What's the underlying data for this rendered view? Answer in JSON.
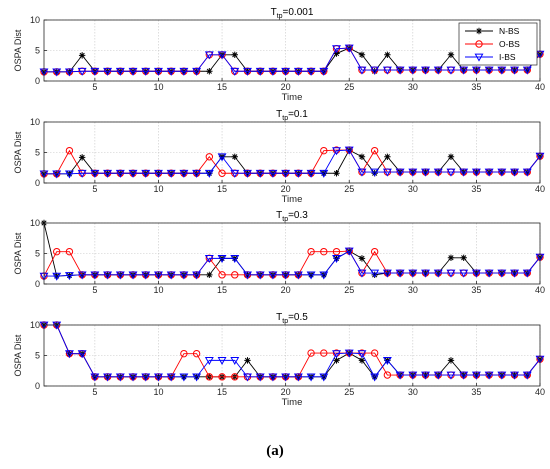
{
  "caption": "(a)",
  "colors": {
    "N-BS": "#000000",
    "O-BS": "#ff0000",
    "I-BS": "#0000ff"
  },
  "chart_data": [
    {
      "type": "line",
      "title": "T_tp=0.001",
      "title_base": "T",
      "title_sub": "tp",
      "title_rest": "=0.001",
      "xlabel": "Time",
      "ylabel": "OSPA Dist",
      "xlim": [
        1,
        40
      ],
      "ylim": [
        0,
        10
      ],
      "xticks": [
        5,
        10,
        15,
        20,
        25,
        30,
        35,
        40
      ],
      "yticks": [
        0,
        5,
        10
      ],
      "grid": true,
      "legend": "top-right",
      "x": [
        1,
        2,
        3,
        4,
        5,
        6,
        7,
        8,
        9,
        10,
        11,
        12,
        13,
        14,
        15,
        16,
        17,
        18,
        19,
        20,
        21,
        22,
        23,
        24,
        25,
        26,
        27,
        28,
        29,
        30,
        31,
        32,
        33,
        34,
        35,
        36,
        37,
        38,
        39,
        40
      ],
      "series": [
        {
          "name": "N-BS",
          "marker": "star",
          "values": [
            1.5,
            1.5,
            1.5,
            4.2,
            1.6,
            1.6,
            1.6,
            1.6,
            1.6,
            1.6,
            1.6,
            1.6,
            1.6,
            1.6,
            4.3,
            4.3,
            1.6,
            1.6,
            1.6,
            1.6,
            1.6,
            1.6,
            1.6,
            4.5,
            5.4,
            4.3,
            1.6,
            4.3,
            1.8,
            1.8,
            1.8,
            1.8,
            4.3,
            1.8,
            1.8,
            1.8,
            1.8,
            1.8,
            1.8,
            4.4
          ]
        },
        {
          "name": "O-BS",
          "marker": "circle",
          "values": [
            1.5,
            1.5,
            1.5,
            1.6,
            1.6,
            1.6,
            1.6,
            1.6,
            1.6,
            1.6,
            1.6,
            1.6,
            1.6,
            4.3,
            4.3,
            1.6,
            1.6,
            1.6,
            1.6,
            1.6,
            1.6,
            1.6,
            1.6,
            5.3,
            5.4,
            1.8,
            1.8,
            1.8,
            1.8,
            1.8,
            1.8,
            1.8,
            1.8,
            1.8,
            1.8,
            1.8,
            1.8,
            1.8,
            1.8,
            4.4
          ]
        },
        {
          "name": "I-BS",
          "marker": "triangle-down",
          "values": [
            1.5,
            1.5,
            1.5,
            1.6,
            1.6,
            1.6,
            1.6,
            1.6,
            1.6,
            1.6,
            1.6,
            1.6,
            1.6,
            4.3,
            4.3,
            1.6,
            1.6,
            1.6,
            1.6,
            1.6,
            1.6,
            1.6,
            1.6,
            5.3,
            5.4,
            1.8,
            1.8,
            1.8,
            1.8,
            1.8,
            1.8,
            1.8,
            1.8,
            1.8,
            1.8,
            1.8,
            1.8,
            1.8,
            1.8,
            4.4
          ]
        }
      ]
    },
    {
      "type": "line",
      "title": "T_tp=0.1",
      "title_base": "T",
      "title_sub": "tp",
      "title_rest": "=0.1",
      "xlabel": "Time",
      "ylabel": "OSPA Dist",
      "xlim": [
        1,
        40
      ],
      "ylim": [
        0,
        10
      ],
      "xticks": [
        5,
        10,
        15,
        20,
        25,
        30,
        35,
        40
      ],
      "yticks": [
        0,
        5,
        10
      ],
      "grid": true,
      "x": [
        1,
        2,
        3,
        4,
        5,
        6,
        7,
        8,
        9,
        10,
        11,
        12,
        13,
        14,
        15,
        16,
        17,
        18,
        19,
        20,
        21,
        22,
        23,
        24,
        25,
        26,
        27,
        28,
        29,
        30,
        31,
        32,
        33,
        34,
        35,
        36,
        37,
        38,
        39,
        40
      ],
      "series": [
        {
          "name": "N-BS",
          "marker": "star",
          "values": [
            1.5,
            1.5,
            1.5,
            4.2,
            1.6,
            1.6,
            1.6,
            1.6,
            1.6,
            1.6,
            1.6,
            1.6,
            1.6,
            1.6,
            4.3,
            4.3,
            1.6,
            1.6,
            1.6,
            1.6,
            1.6,
            1.6,
            1.6,
            1.6,
            5.4,
            4.3,
            1.6,
            4.3,
            1.8,
            1.8,
            1.8,
            1.8,
            4.3,
            1.8,
            1.8,
            1.8,
            1.8,
            1.8,
            1.8,
            4.4
          ]
        },
        {
          "name": "O-BS",
          "marker": "circle",
          "values": [
            1.5,
            1.5,
            5.3,
            1.6,
            1.6,
            1.6,
            1.6,
            1.6,
            1.6,
            1.6,
            1.6,
            1.6,
            1.6,
            4.3,
            1.6,
            1.6,
            1.6,
            1.6,
            1.6,
            1.6,
            1.6,
            1.6,
            5.3,
            5.4,
            5.4,
            1.8,
            5.3,
            1.8,
            1.8,
            1.8,
            1.8,
            1.8,
            1.8,
            1.8,
            1.8,
            1.8,
            1.8,
            1.8,
            1.8,
            4.4
          ]
        },
        {
          "name": "I-BS",
          "marker": "triangle-down",
          "values": [
            1.5,
            1.5,
            1.5,
            1.6,
            1.6,
            1.6,
            1.6,
            1.6,
            1.6,
            1.6,
            1.6,
            1.6,
            1.6,
            1.6,
            4.3,
            1.6,
            1.6,
            1.6,
            1.6,
            1.6,
            1.6,
            1.6,
            1.6,
            5.3,
            5.4,
            1.8,
            1.8,
            1.8,
            1.8,
            1.8,
            1.8,
            1.8,
            1.8,
            1.8,
            1.8,
            1.8,
            1.8,
            1.8,
            1.8,
            4.4
          ]
        }
      ]
    },
    {
      "type": "line",
      "title": "T_tp=0.3",
      "title_base": "T",
      "title_sub": "tp",
      "title_rest": "=0.3",
      "xlabel": "",
      "ylabel": "OSPA Dist",
      "xlim": [
        1,
        40
      ],
      "ylim": [
        0,
        10
      ],
      "xticks": [
        5,
        10,
        15,
        20,
        25,
        30,
        35,
        40
      ],
      "yticks": [
        0,
        5,
        10
      ],
      "grid": true,
      "x": [
        1,
        2,
        3,
        4,
        5,
        6,
        7,
        8,
        9,
        10,
        11,
        12,
        13,
        14,
        15,
        16,
        17,
        18,
        19,
        20,
        21,
        22,
        23,
        24,
        25,
        26,
        27,
        28,
        29,
        30,
        31,
        32,
        33,
        34,
        35,
        36,
        37,
        38,
        39,
        40
      ],
      "series": [
        {
          "name": "N-BS",
          "marker": "star",
          "values": [
            10,
            1.3,
            1.4,
            1.5,
            1.5,
            1.5,
            1.5,
            1.5,
            1.5,
            1.5,
            1.5,
            1.5,
            1.5,
            1.5,
            4.2,
            4.2,
            1.5,
            1.5,
            1.5,
            1.5,
            1.5,
            1.5,
            1.5,
            4.2,
            5.4,
            4.2,
            1.5,
            1.8,
            1.8,
            1.8,
            1.8,
            1.8,
            4.3,
            4.3,
            1.8,
            1.8,
            1.8,
            1.8,
            1.8,
            4.4
          ]
        },
        {
          "name": "O-BS",
          "marker": "circle",
          "values": [
            1.3,
            5.3,
            5.3,
            1.5,
            1.5,
            1.5,
            1.5,
            1.5,
            1.5,
            1.5,
            1.5,
            1.5,
            1.5,
            4.2,
            1.5,
            1.5,
            1.5,
            1.5,
            1.5,
            1.5,
            1.5,
            5.3,
            5.3,
            5.3,
            5.4,
            1.8,
            5.3,
            1.8,
            1.8,
            1.8,
            1.8,
            1.8,
            1.8,
            1.8,
            1.8,
            1.8,
            1.8,
            1.8,
            1.8,
            4.4
          ]
        },
        {
          "name": "I-BS",
          "marker": "triangle-down",
          "values": [
            1.3,
            1.3,
            1.4,
            1.5,
            1.5,
            1.5,
            1.5,
            1.5,
            1.5,
            1.5,
            1.5,
            1.5,
            1.5,
            4.2,
            4.2,
            4.2,
            1.5,
            1.5,
            1.5,
            1.5,
            1.5,
            1.5,
            1.5,
            4.2,
            5.4,
            1.8,
            1.8,
            1.8,
            1.8,
            1.8,
            1.8,
            1.8,
            1.8,
            1.8,
            1.8,
            1.8,
            1.8,
            1.8,
            1.8,
            4.4
          ]
        }
      ]
    },
    {
      "type": "line",
      "title": "T_tp=0.5",
      "title_base": "T",
      "title_sub": "tp",
      "title_rest": "=0.5",
      "xlabel": "Time",
      "ylabel": "OSPA Dist",
      "xlim": [
        1,
        40
      ],
      "ylim": [
        0,
        10
      ],
      "xticks": [
        5,
        10,
        15,
        20,
        25,
        30,
        35,
        40
      ],
      "yticks": [
        0,
        5,
        10
      ],
      "grid": true,
      "x": [
        1,
        2,
        3,
        4,
        5,
        6,
        7,
        8,
        9,
        10,
        11,
        12,
        13,
        14,
        15,
        16,
        17,
        18,
        19,
        20,
        21,
        22,
        23,
        24,
        25,
        26,
        27,
        28,
        29,
        30,
        31,
        32,
        33,
        34,
        35,
        36,
        37,
        38,
        39,
        40
      ],
      "series": [
        {
          "name": "N-BS",
          "marker": "star",
          "values": [
            10,
            10,
            5.3,
            5.3,
            1.5,
            1.5,
            1.5,
            1.5,
            1.5,
            1.5,
            1.5,
            1.5,
            1.5,
            1.5,
            1.5,
            1.5,
            4.2,
            1.5,
            1.5,
            1.5,
            1.5,
            1.5,
            1.5,
            4.2,
            5.4,
            4.2,
            1.5,
            4.2,
            1.8,
            1.8,
            1.8,
            1.8,
            4.2,
            1.8,
            1.8,
            1.8,
            1.8,
            1.8,
            1.8,
            4.4
          ]
        },
        {
          "name": "O-BS",
          "marker": "circle",
          "values": [
            10,
            10,
            5.3,
            5.3,
            1.5,
            1.5,
            1.5,
            1.5,
            1.5,
            1.5,
            1.5,
            5.3,
            5.3,
            1.5,
            1.5,
            1.5,
            1.5,
            1.5,
            1.5,
            1.5,
            1.5,
            5.4,
            5.4,
            5.4,
            5.4,
            5.4,
            5.4,
            1.8,
            1.8,
            1.8,
            1.8,
            1.8,
            1.8,
            1.8,
            1.8,
            1.8,
            1.8,
            1.8,
            1.8,
            4.4
          ]
        },
        {
          "name": "I-BS",
          "marker": "triangle-down",
          "values": [
            10,
            10,
            5.3,
            5.3,
            1.5,
            1.5,
            1.5,
            1.5,
            1.5,
            1.5,
            1.5,
            1.5,
            1.5,
            4.2,
            4.2,
            4.2,
            1.5,
            1.5,
            1.5,
            1.5,
            1.5,
            1.5,
            1.5,
            5.3,
            5.4,
            5.3,
            1.5,
            4.2,
            1.8,
            1.8,
            1.8,
            1.8,
            1.8,
            1.8,
            1.8,
            1.8,
            1.8,
            1.8,
            1.8,
            4.4
          ]
        }
      ]
    }
  ]
}
